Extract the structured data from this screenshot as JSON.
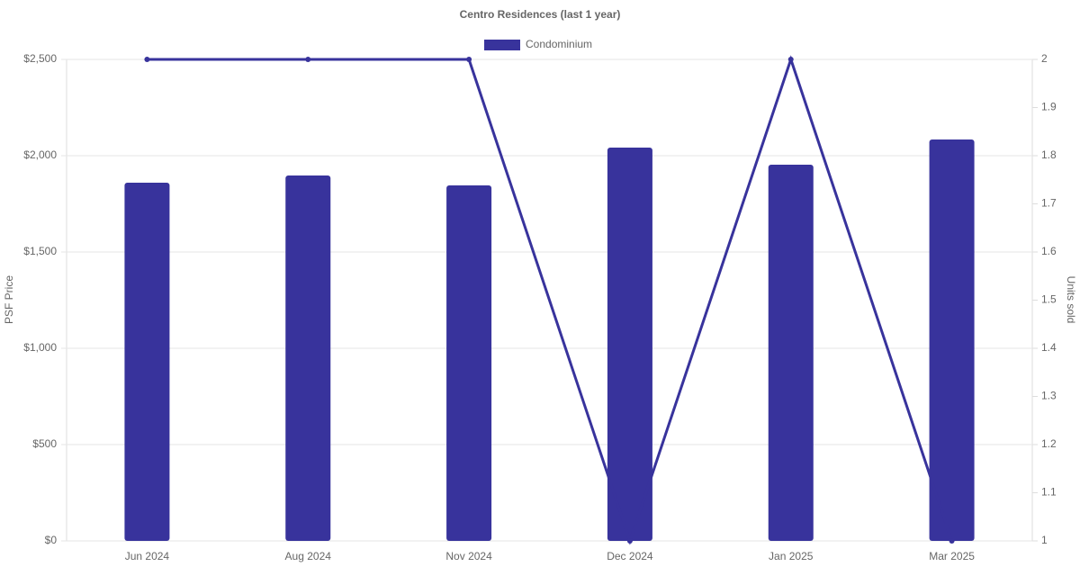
{
  "chart_data": {
    "type": "bar",
    "title": "Centro Residences (last 1 year)",
    "categories": [
      "Jun 2024",
      "Aug 2024",
      "Nov 2024",
      "Dec 2024",
      "Jan 2025",
      "Mar 2025"
    ],
    "series": [
      {
        "name": "Condominium",
        "color": "#38339c",
        "values": [
          1860,
          1897,
          1846,
          2042,
          1953,
          2084
        ]
      },
      {
        "type": "line",
        "axis": "y2",
        "color": "#38339c",
        "values": [
          2,
          2,
          2,
          1,
          2,
          1
        ]
      }
    ],
    "ylabel": "PSF Price",
    "y2label": "Units sold",
    "ylim": [
      0,
      2500
    ],
    "yticks": [
      {
        "value": 0,
        "label": "$0"
      },
      {
        "value": 500,
        "label": "$500"
      },
      {
        "value": 1000,
        "label": "$1,000"
      },
      {
        "value": 1500,
        "label": "$1,500"
      },
      {
        "value": 2000,
        "label": "$2,000"
      },
      {
        "value": 2500,
        "label": "$2,500"
      }
    ],
    "y2lim": [
      1,
      2
    ],
    "y2ticks": [
      1,
      1.1,
      1.2,
      1.3,
      1.4,
      1.5,
      1.6,
      1.7,
      1.8,
      1.9,
      2
    ],
    "grid": true,
    "legend": "top"
  }
}
